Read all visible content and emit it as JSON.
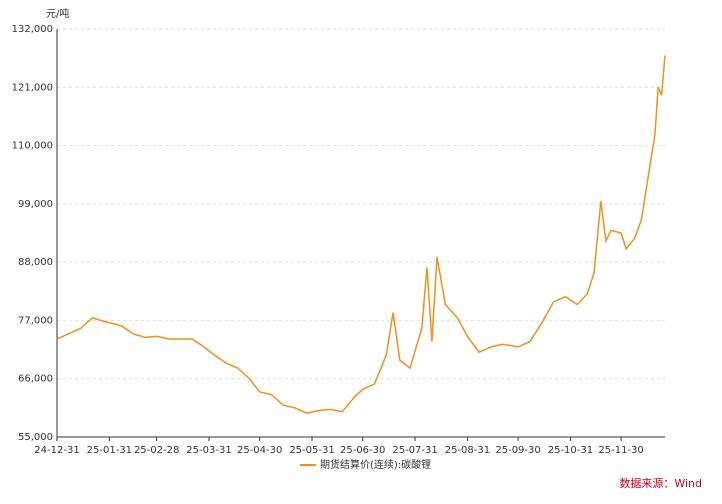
{
  "chart_data": {
    "type": "line",
    "unit_label": "元/吨",
    "source": "数据来源：Wind",
    "x": [
      "24-12-31",
      "25-01-07",
      "25-01-14",
      "25-01-21",
      "25-01-28",
      "25-02-07",
      "25-02-14",
      "25-02-21",
      "25-02-28",
      "25-03-07",
      "25-03-14",
      "25-03-21",
      "25-03-28",
      "25-04-03",
      "25-04-10",
      "25-04-17",
      "25-04-24",
      "25-04-30",
      "25-05-07",
      "25-05-14",
      "25-05-21",
      "25-05-28",
      "25-06-04",
      "25-06-11",
      "25-06-18",
      "25-06-25",
      "25-06-30",
      "25-07-07",
      "25-07-14",
      "25-07-18",
      "25-07-22",
      "25-07-28",
      "25-08-04",
      "25-08-07",
      "25-08-10",
      "25-08-13",
      "25-08-18",
      "25-08-25",
      "25-08-31",
      "25-09-07",
      "25-09-14",
      "25-09-21",
      "25-09-30",
      "25-10-07",
      "25-10-14",
      "25-10-21",
      "25-10-28",
      "25-11-04",
      "25-11-10",
      "25-11-14",
      "25-11-18",
      "25-11-21",
      "25-11-24",
      "25-11-30",
      "25-12-03",
      "25-12-08",
      "25-12-12",
      "25-12-16",
      "25-12-20",
      "25-12-22",
      "25-12-24",
      "25-12-26"
    ],
    "series": [
      {
        "name": "期货结算价(连续):碳酸锂",
        "color": "#f0901e",
        "values": [
          73500,
          74500,
          75500,
          77500,
          76800,
          76000,
          74500,
          73800,
          74000,
          73500,
          73500,
          73500,
          72000,
          70500,
          69000,
          68000,
          66000,
          63500,
          63000,
          61000,
          60500,
          59500,
          60000,
          60200,
          59800,
          62500,
          64000,
          65000,
          70500,
          78500,
          69500,
          68000,
          75500,
          87000,
          73000,
          89000,
          80000,
          77500,
          74000,
          71000,
          72000,
          72500,
          72000,
          73000,
          76500,
          80500,
          81500,
          80000,
          82000,
          86000,
          99500,
          92000,
          94000,
          93500,
          90500,
          92500,
          96000,
          104000,
          112000,
          121000,
          119500,
          127000
        ]
      }
    ],
    "xlim": [
      "24-12-31",
      "25-12-26"
    ],
    "xticks": [
      "24-12-31",
      "25-01-31",
      "25-02-28",
      "25-03-31",
      "25-04-30",
      "25-05-31",
      "25-06-30",
      "25-07-31",
      "25-08-31",
      "25-09-30",
      "25-10-31",
      "25-11-30"
    ],
    "ylim": [
      55000,
      132000
    ],
    "yticks": [
      {
        "value": 55000,
        "label": "55,000"
      },
      {
        "value": 66000,
        "label": "66,000"
      },
      {
        "value": 77000,
        "label": "77,000"
      },
      {
        "value": 88000,
        "label": "88,000"
      },
      {
        "value": 99000,
        "label": "99,000"
      },
      {
        "value": 110000,
        "label": "110,000"
      },
      {
        "value": 121000,
        "label": "121,000"
      },
      {
        "value": 132000,
        "label": "132,000"
      }
    ],
    "grid": true
  }
}
